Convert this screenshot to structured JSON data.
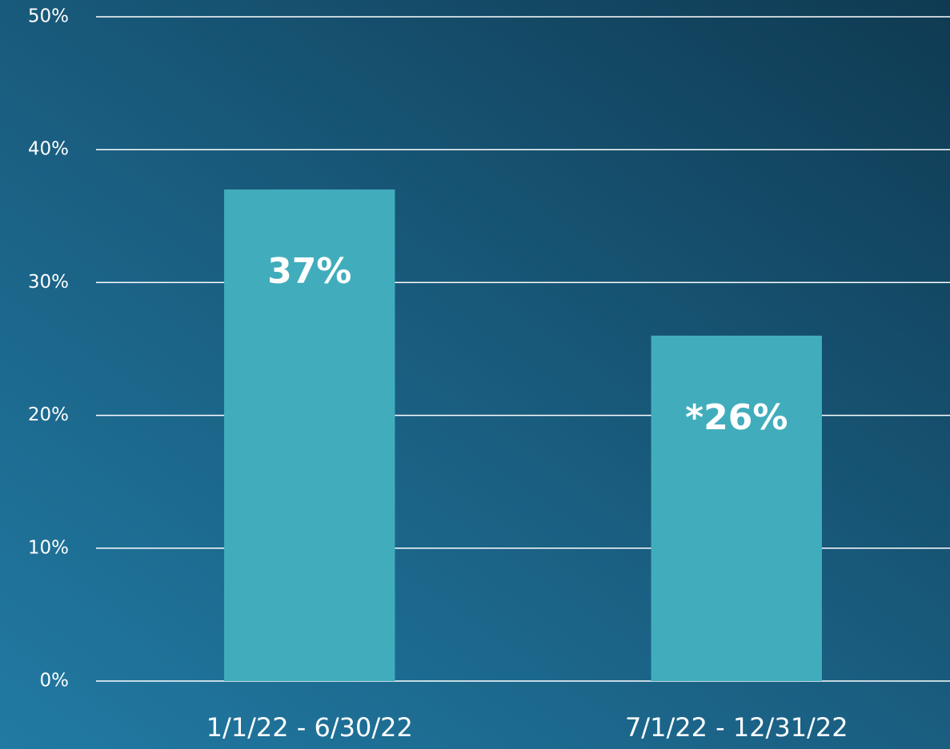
{
  "chart_data": {
    "type": "bar",
    "categories": [
      "1/1/22 - 6/30/22",
      "7/1/22 - 12/31/22"
    ],
    "values": [
      37,
      26
    ],
    "value_labels": [
      "37%",
      "*26%"
    ],
    "color": "#41adbc",
    "ylim": [
      0,
      50
    ],
    "yticks": [
      {
        "value": 0,
        "label": "0%"
      },
      {
        "value": 10,
        "label": "10%"
      },
      {
        "value": 20,
        "label": "20%"
      },
      {
        "value": 30,
        "label": "30%"
      },
      {
        "value": 40,
        "label": "40%"
      },
      {
        "value": 50,
        "label": "50%"
      }
    ],
    "grid": true
  }
}
